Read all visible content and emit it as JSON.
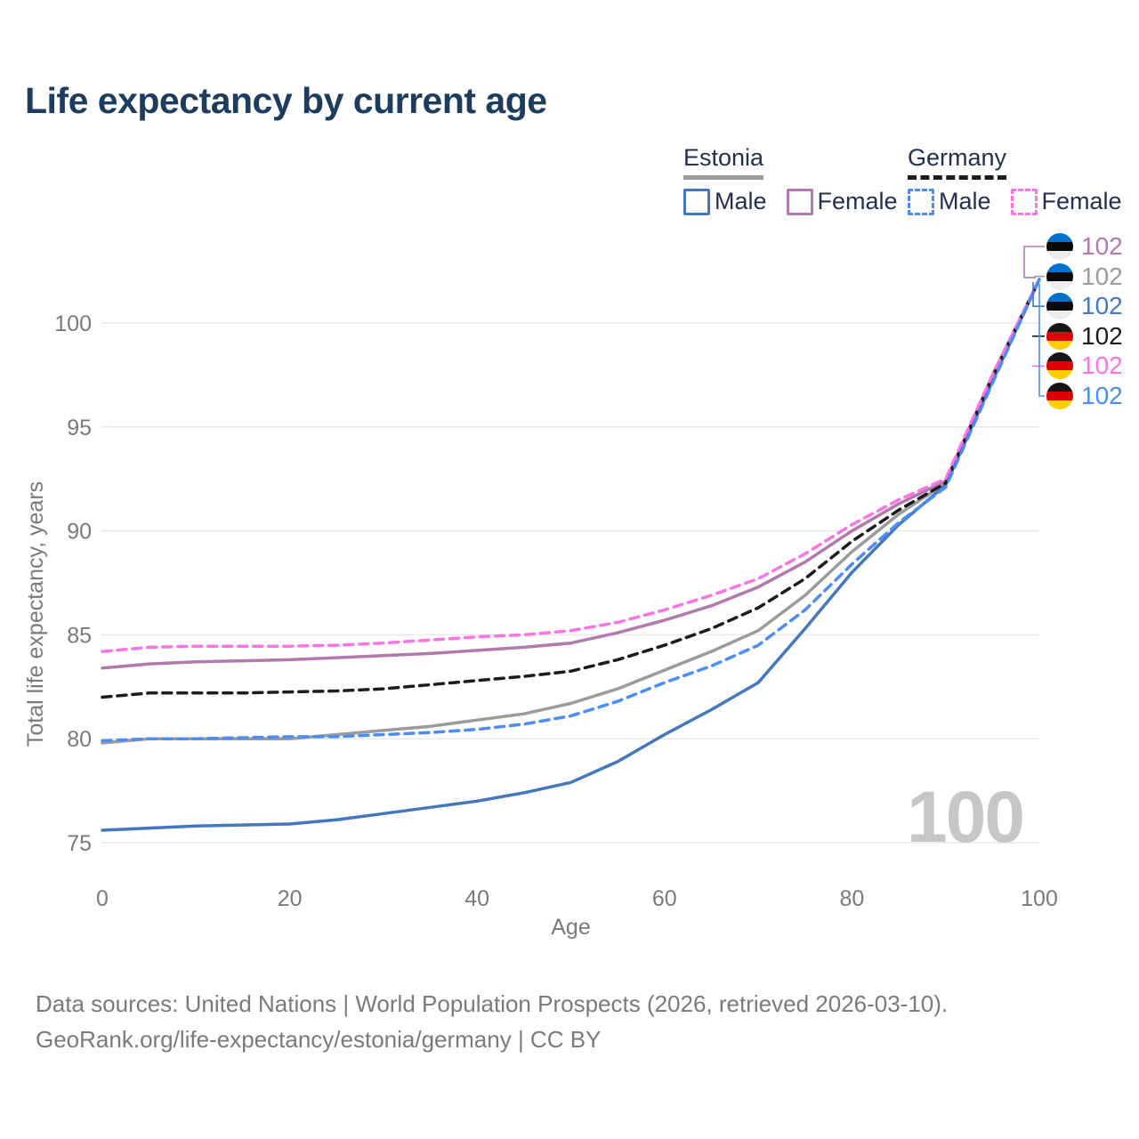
{
  "title": "Life expectancy by current age",
  "watermark": "100",
  "legend": {
    "groups": [
      {
        "label": "Estonia",
        "line_style": "solid",
        "line_color": "#9b9b9b",
        "items": [
          {
            "label": "Male",
            "color": "#4577bd",
            "box_style": "solid"
          },
          {
            "label": "Female",
            "color": "#b279ae",
            "box_style": "solid"
          }
        ]
      },
      {
        "label": "Germany",
        "line_style": "dashed",
        "line_color": "#1c1c1c",
        "items": [
          {
            "label": "Male",
            "color": "#4b8cf5",
            "box_style": "dashed"
          },
          {
            "label": "Female",
            "color": "#fb74e4",
            "box_style": "dashed"
          }
        ]
      }
    ]
  },
  "chart_data": {
    "type": "line",
    "title": "Life expectancy by current age",
    "xlabel": "Age",
    "ylabel": "Total life expectancy, years",
    "xlim": [
      0,
      100
    ],
    "ylim": [
      74.5,
      103
    ],
    "x_ticks": [
      0,
      20,
      40,
      60,
      80,
      100
    ],
    "y_ticks": [
      75,
      80,
      85,
      90,
      95,
      100
    ],
    "grid": "horizontal-only",
    "legend_position": "top-right",
    "x": [
      0,
      5,
      10,
      15,
      20,
      25,
      30,
      35,
      40,
      45,
      50,
      55,
      60,
      65,
      70,
      75,
      80,
      85,
      90,
      95,
      100
    ],
    "series": [
      {
        "name": "Estonia",
        "country": "Estonia",
        "sex": "total",
        "color": "#9b9b9b",
        "dash": "solid",
        "width": 3.5,
        "values": [
          79.8,
          80.0,
          80.0,
          80.0,
          80.0,
          80.2,
          80.4,
          80.6,
          80.9,
          81.2,
          81.7,
          82.4,
          83.3,
          84.2,
          85.2,
          86.9,
          89.0,
          90.8,
          92.3,
          97.5,
          102.1
        ]
      },
      {
        "name": "Estonia Female",
        "country": "Estonia",
        "sex": "female",
        "color": "#b279ae",
        "dash": "solid",
        "width": 3.5,
        "values": [
          83.4,
          83.6,
          83.7,
          83.75,
          83.8,
          83.9,
          84.0,
          84.1,
          84.25,
          84.4,
          84.6,
          85.1,
          85.7,
          86.4,
          87.3,
          88.5,
          90.0,
          91.3,
          92.4,
          97.4,
          102.1
        ]
      },
      {
        "name": "Estonia Male",
        "country": "Estonia",
        "sex": "male",
        "color": "#4577bd",
        "dash": "solid",
        "width": 3.5,
        "values": [
          75.6,
          75.7,
          75.8,
          75.85,
          75.9,
          76.1,
          76.4,
          76.7,
          77.0,
          77.4,
          77.9,
          78.9,
          80.2,
          81.4,
          82.7,
          85.3,
          88.0,
          90.3,
          92.2,
          97.2,
          102.1
        ]
      },
      {
        "name": "Germany",
        "country": "Germany",
        "sex": "total",
        "color": "#1c1c1c",
        "dash": "dashed",
        "width": 3.5,
        "values": [
          82.0,
          82.2,
          82.2,
          82.2,
          82.25,
          82.3,
          82.4,
          82.6,
          82.8,
          83.0,
          83.25,
          83.8,
          84.5,
          85.3,
          86.3,
          87.7,
          89.5,
          91.0,
          92.3,
          97.4,
          102.1
        ]
      },
      {
        "name": "Germany Female",
        "country": "Germany",
        "sex": "female",
        "color": "#fb74e4",
        "dash": "dashed",
        "width": 3.5,
        "values": [
          84.2,
          84.4,
          84.45,
          84.45,
          84.45,
          84.5,
          84.6,
          84.75,
          84.9,
          85.0,
          85.2,
          85.6,
          86.2,
          86.9,
          87.7,
          88.9,
          90.3,
          91.5,
          92.5,
          97.5,
          102.1
        ]
      },
      {
        "name": "Germany Male",
        "country": "Germany",
        "sex": "male",
        "color": "#4b8cf5",
        "dash": "dashed",
        "width": 3.5,
        "values": [
          79.9,
          80.0,
          80.0,
          80.05,
          80.1,
          80.1,
          80.2,
          80.3,
          80.45,
          80.7,
          81.1,
          81.8,
          82.7,
          83.5,
          84.5,
          86.2,
          88.4,
          90.4,
          92.1,
          97.1,
          102.1
        ]
      }
    ]
  },
  "end_labels": [
    {
      "country": "Estonia",
      "series": "Estonia Female",
      "value": "102",
      "color": "#b279ae"
    },
    {
      "country": "Estonia",
      "series": "Estonia",
      "value": "102",
      "color": "#9b9b9b"
    },
    {
      "country": "Estonia",
      "series": "Estonia Male",
      "value": "102",
      "color": "#4577bd"
    },
    {
      "country": "Germany",
      "series": "Germany",
      "value": "102",
      "color": "#1c1c1c"
    },
    {
      "country": "Germany",
      "series": "Germany Female",
      "value": "102",
      "color": "#fb74e4"
    },
    {
      "country": "Germany",
      "series": "Germany Male",
      "value": "102",
      "color": "#4b8cf5"
    }
  ],
  "footer": {
    "line1": "Data sources: United Nations | World Population Prospects (2026, retrieved 2026-03-10).",
    "line2": "GeoRank.org/life-expectancy/estonia/germany | CC BY"
  },
  "colors": {
    "title": "#1d3c5e",
    "legend_text": "#22304f",
    "axis_text": "#7a7a7a",
    "grid": "#e9e9e9",
    "watermark": "#c6c6c6",
    "footer_text": "#7a7a7a"
  }
}
